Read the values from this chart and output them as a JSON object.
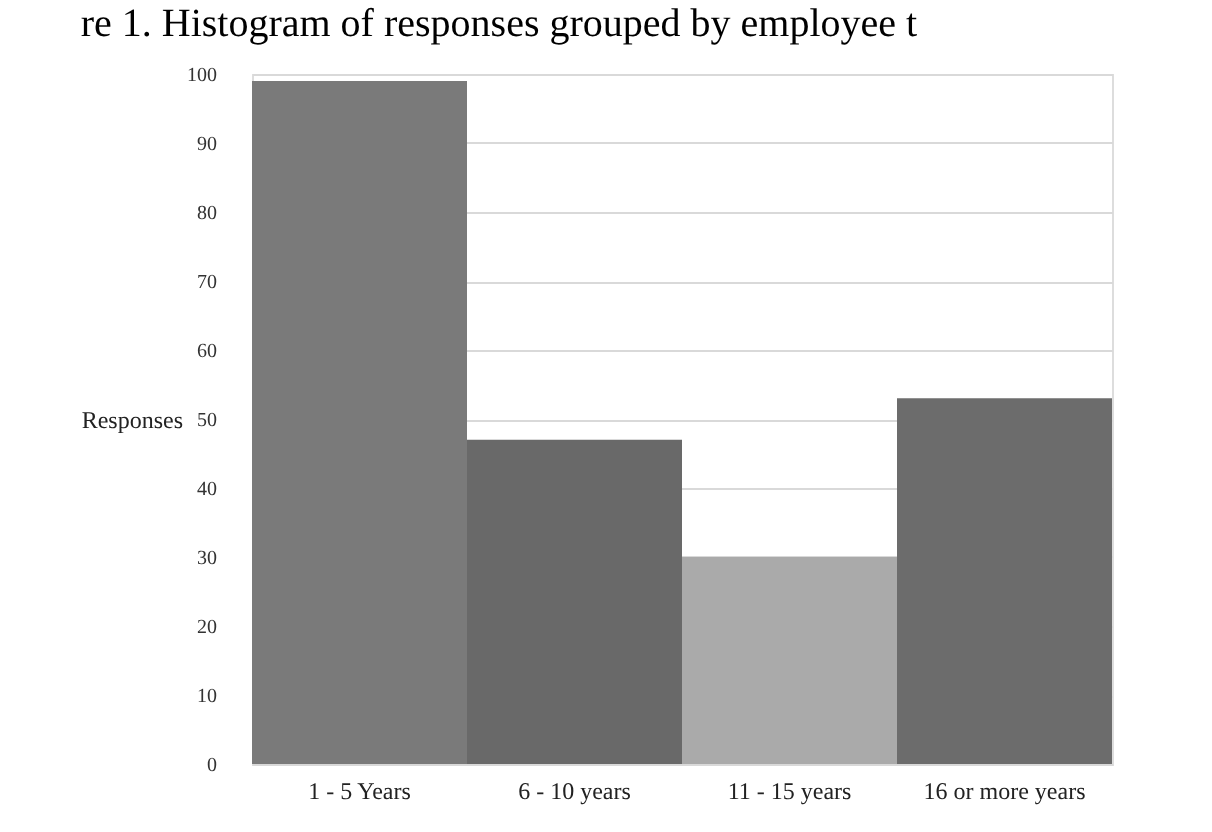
{
  "chart_data": {
    "type": "bar",
    "title": "re 1. Histogram of responses grouped by employee t",
    "ylabel": "Responses",
    "categories": [
      "1 - 5 Years",
      "6 - 10 years",
      "11 - 15 years",
      "16 or more years"
    ],
    "values": [
      99,
      47,
      30,
      53
    ],
    "colors": [
      "#7a7a7a",
      "#696969",
      "#aaaaaa",
      "#6c6c6c"
    ],
    "ylim": [
      0,
      100
    ],
    "yticks": [
      0,
      10,
      20,
      30,
      40,
      50,
      60,
      70,
      80,
      90,
      100
    ],
    "grid": "y"
  }
}
